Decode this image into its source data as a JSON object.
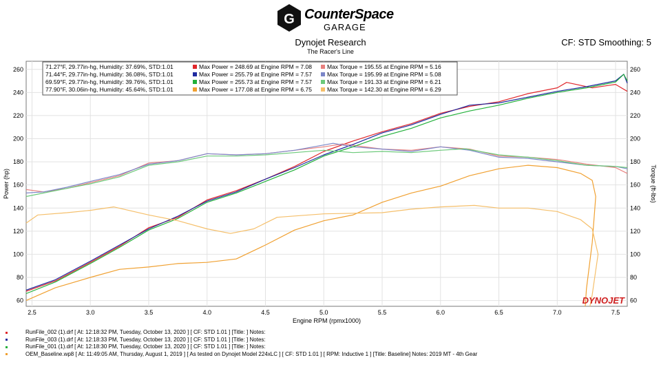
{
  "header": {
    "logo_name": "CounterSpace",
    "logo_sub": "GARAGE",
    "title": "Dynojet Research",
    "subtitle": "The Racer's Line",
    "cf_info": "CF: STD Smoothing: 5"
  },
  "legend_rows": [
    {
      "weather": "71.27°F, 29.77in-hg, Humidity: 37.69%, STD:1.01",
      "power": "Max Power = 248.69 at Engine RPM = 7.08",
      "torque": "Max Torque = 195.55 at Engine RPM = 5.16",
      "power_color": "#e0262a",
      "torque_color": "#e8807e"
    },
    {
      "weather": "71.44°F, 29.77in-hg, Humidity: 36.08%, STD:1.01",
      "power": "Max Power = 255.79 at Engine RPM = 7.57",
      "torque": "Max Torque = 195.99 at Engine RPM = 5.08",
      "power_color": "#1f2aa0",
      "torque_color": "#7b86c8"
    },
    {
      "weather": "69.59°F, 29.77in-hg, Humidity: 39.76%, STD:1.01",
      "power": "Max Power = 255.73 at Engine RPM = 7.57",
      "torque": "Max Torque = 191.33 at Engine RPM = 6.21",
      "power_color": "#22b03a",
      "torque_color": "#6cc97a"
    },
    {
      "weather": "77.90°F, 30.06in-hg, Humidity: 45.64%, STD:1.01",
      "power": "Max Power = 177.08 at Engine RPM = 6.75",
      "torque": "Max Torque = 142.30 at Engine RPM = 6.29",
      "power_color": "#f0a030",
      "torque_color": "#f5bf6a"
    }
  ],
  "chart_data": {
    "type": "line",
    "xlabel": "Engine RPM (rpmx1000)",
    "ylabel_left": "Power (hp)",
    "ylabel_right": "Torque (ft-lbs)",
    "xlim": [
      2.45,
      7.6
    ],
    "ylim": [
      55,
      267
    ],
    "x_ticks": [
      "2.5",
      "3.0",
      "3.5",
      "4.0",
      "4.5",
      "5.0",
      "5.5",
      "6.0",
      "6.5",
      "7.0",
      "7.5"
    ],
    "y_ticks": [
      "60",
      "80",
      "100",
      "120",
      "140",
      "160",
      "180",
      "200",
      "220",
      "240",
      "260"
    ],
    "grid": true,
    "watermark": "DYNOJET",
    "series": [
      {
        "color": "#e0262a",
        "points": [
          [
            2.45,
            68
          ],
          [
            2.7,
            77
          ],
          [
            3.0,
            93
          ],
          [
            3.25,
            107
          ],
          [
            3.5,
            123
          ],
          [
            3.75,
            132
          ],
          [
            4.0,
            147
          ],
          [
            4.25,
            155
          ],
          [
            4.5,
            165
          ],
          [
            4.75,
            176
          ],
          [
            5.0,
            189
          ],
          [
            5.25,
            198
          ],
          [
            5.5,
            206
          ],
          [
            5.75,
            213
          ],
          [
            6.0,
            222
          ],
          [
            6.25,
            228
          ],
          [
            6.5,
            232
          ],
          [
            6.75,
            239
          ],
          [
            7.0,
            244
          ],
          [
            7.08,
            248.7
          ],
          [
            7.3,
            244
          ],
          [
            7.5,
            247
          ],
          [
            7.6,
            241
          ]
        ]
      },
      {
        "color": "#e8807e",
        "points": [
          [
            2.45,
            156
          ],
          [
            2.6,
            154
          ],
          [
            2.8,
            157
          ],
          [
            3.0,
            162
          ],
          [
            3.25,
            168
          ],
          [
            3.5,
            179
          ],
          [
            3.75,
            181
          ],
          [
            4.0,
            187
          ],
          [
            4.25,
            186
          ],
          [
            4.5,
            187
          ],
          [
            4.75,
            190
          ],
          [
            5.0,
            193
          ],
          [
            5.16,
            195.5
          ],
          [
            5.5,
            191
          ],
          [
            5.75,
            190
          ],
          [
            6.0,
            193
          ],
          [
            6.25,
            191
          ],
          [
            6.5,
            185
          ],
          [
            6.75,
            184
          ],
          [
            7.0,
            182
          ],
          [
            7.25,
            178
          ],
          [
            7.5,
            175
          ],
          [
            7.6,
            170
          ]
        ]
      },
      {
        "color": "#1f2aa0",
        "points": [
          [
            2.45,
            69
          ],
          [
            2.7,
            78
          ],
          [
            3.0,
            94
          ],
          [
            3.25,
            108
          ],
          [
            3.5,
            122
          ],
          [
            3.75,
            133
          ],
          [
            4.0,
            146
          ],
          [
            4.25,
            154
          ],
          [
            4.5,
            165
          ],
          [
            4.75,
            175
          ],
          [
            5.0,
            186
          ],
          [
            5.25,
            195
          ],
          [
            5.5,
            205
          ],
          [
            5.75,
            212
          ],
          [
            6.0,
            221
          ],
          [
            6.25,
            229
          ],
          [
            6.5,
            231
          ],
          [
            6.75,
            236
          ],
          [
            7.0,
            241
          ],
          [
            7.25,
            245
          ],
          [
            7.5,
            250
          ],
          [
            7.57,
            255.8
          ],
          [
            7.6,
            248
          ]
        ]
      },
      {
        "color": "#7b86c8",
        "points": [
          [
            2.45,
            153
          ],
          [
            2.6,
            154
          ],
          [
            2.8,
            158
          ],
          [
            3.0,
            163
          ],
          [
            3.25,
            169
          ],
          [
            3.5,
            178
          ],
          [
            3.75,
            181
          ],
          [
            4.0,
            187
          ],
          [
            4.25,
            186
          ],
          [
            4.5,
            187
          ],
          [
            4.75,
            190
          ],
          [
            5.08,
            196
          ],
          [
            5.25,
            193
          ],
          [
            5.5,
            191
          ],
          [
            5.75,
            189
          ],
          [
            6.0,
            193
          ],
          [
            6.25,
            190
          ],
          [
            6.5,
            184
          ],
          [
            6.75,
            183
          ],
          [
            7.0,
            180
          ],
          [
            7.25,
            177
          ],
          [
            7.5,
            176
          ],
          [
            7.6,
            174
          ]
        ]
      },
      {
        "color": "#22b03a",
        "points": [
          [
            2.45,
            66
          ],
          [
            2.7,
            76
          ],
          [
            3.0,
            92
          ],
          [
            3.25,
            106
          ],
          [
            3.5,
            121
          ],
          [
            3.75,
            131
          ],
          [
            4.0,
            145
          ],
          [
            4.25,
            153
          ],
          [
            4.5,
            163
          ],
          [
            4.75,
            173
          ],
          [
            5.0,
            185
          ],
          [
            5.25,
            193
          ],
          [
            5.5,
            202
          ],
          [
            5.75,
            209
          ],
          [
            6.0,
            218
          ],
          [
            6.25,
            224
          ],
          [
            6.5,
            229
          ],
          [
            6.75,
            235
          ],
          [
            7.0,
            240
          ],
          [
            7.25,
            244
          ],
          [
            7.5,
            249
          ],
          [
            7.57,
            255.7
          ],
          [
            7.6,
            250
          ]
        ]
      },
      {
        "color": "#6cc97a",
        "points": [
          [
            2.45,
            150
          ],
          [
            2.6,
            153
          ],
          [
            2.8,
            157
          ],
          [
            3.0,
            161
          ],
          [
            3.25,
            167
          ],
          [
            3.5,
            177
          ],
          [
            3.75,
            180
          ],
          [
            4.0,
            185
          ],
          [
            4.25,
            185
          ],
          [
            4.5,
            186
          ],
          [
            4.75,
            188
          ],
          [
            5.0,
            190
          ],
          [
            5.25,
            188
          ],
          [
            5.5,
            189
          ],
          [
            5.75,
            188
          ],
          [
            6.0,
            190
          ],
          [
            6.21,
            191.3
          ],
          [
            6.5,
            186
          ],
          [
            6.75,
            184
          ],
          [
            7.0,
            181
          ],
          [
            7.25,
            177
          ],
          [
            7.5,
            176
          ],
          [
            7.6,
            175
          ]
        ]
      },
      {
        "color": "#f0a030",
        "points": [
          [
            2.45,
            60
          ],
          [
            2.7,
            71
          ],
          [
            3.0,
            80
          ],
          [
            3.25,
            87
          ],
          [
            3.5,
            89
          ],
          [
            3.75,
            92
          ],
          [
            4.0,
            93
          ],
          [
            4.25,
            96
          ],
          [
            4.5,
            108
          ],
          [
            4.75,
            121
          ],
          [
            5.0,
            129
          ],
          [
            5.25,
            134
          ],
          [
            5.5,
            145
          ],
          [
            5.75,
            153
          ],
          [
            6.0,
            159
          ],
          [
            6.25,
            168
          ],
          [
            6.5,
            174
          ],
          [
            6.75,
            177
          ],
          [
            7.0,
            175
          ],
          [
            7.2,
            170
          ],
          [
            7.3,
            164
          ],
          [
            7.33,
            150
          ],
          [
            7.3,
            110
          ],
          [
            7.25,
            70
          ],
          [
            7.24,
            55
          ]
        ]
      },
      {
        "color": "#f5bf6a",
        "points": [
          [
            2.45,
            127
          ],
          [
            2.55,
            134
          ],
          [
            2.8,
            136
          ],
          [
            3.0,
            138
          ],
          [
            3.2,
            141
          ],
          [
            3.5,
            134
          ],
          [
            3.75,
            129
          ],
          [
            4.0,
            122
          ],
          [
            4.2,
            118
          ],
          [
            4.4,
            122
          ],
          [
            4.6,
            132
          ],
          [
            5.0,
            135
          ],
          [
            5.5,
            136
          ],
          [
            5.75,
            139
          ],
          [
            6.0,
            141
          ],
          [
            6.29,
            142.3
          ],
          [
            6.5,
            140
          ],
          [
            6.75,
            140
          ],
          [
            7.0,
            137
          ],
          [
            7.2,
            130
          ],
          [
            7.3,
            122
          ],
          [
            7.35,
            100
          ],
          [
            7.3,
            65
          ],
          [
            7.28,
            55
          ]
        ]
      }
    ]
  },
  "footer": [
    {
      "color": "#e0262a",
      "text": "RunFile_002 (1).drf [ At: 12:18:32 PM, Tuesday, October 13, 2020 ] [ CF: STD 1.01 ] [Title: ]  Notes:"
    },
    {
      "color": "#1f2aa0",
      "text": "RunFile_003 (1).drf [ At: 12:18:33 PM, Tuesday, October 13, 2020 ] [ CF: STD 1.01 ] [Title: ]  Notes:"
    },
    {
      "color": "#22b03a",
      "text": "RunFile_001 (1).drf [ At: 12:18:30 PM, Tuesday, October 13, 2020 ] [ CF: STD 1.01 ] [Title: ]  Notes:"
    },
    {
      "color": "#f0a030",
      "text": "OEM_Baseline.wp8 [ At: 11:49:05 AM, Thursday, August 1, 2019 ] [ As tested on Dynojet Model 224xLC ] [ CF: STD 1.01 ] [ RPM: Inductive 1 ] [Title: Baseline]  Notes: 2019 MT - 4th Gear"
    }
  ]
}
